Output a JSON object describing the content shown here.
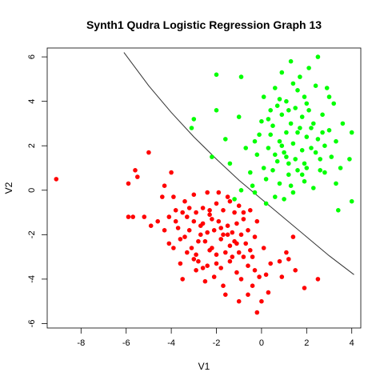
{
  "chart_data": {
    "type": "scatter",
    "title": "Synth1 Qudra Logistic Regression Graph 13",
    "xlabel": "V1",
    "ylabel": "V2",
    "xlim": [
      -9.5,
      4.4
    ],
    "ylim": [
      -6.2,
      6.4
    ],
    "x_ticks": [
      -8,
      -6,
      -4,
      -2,
      0,
      2,
      4
    ],
    "y_ticks": [
      -6,
      -4,
      -2,
      0,
      2,
      4,
      6
    ],
    "grid": false,
    "legend": "none",
    "colors": {
      "class_red": "#ff0000",
      "class_green": "#00ff00",
      "boundary": "#333333"
    },
    "series": [
      {
        "color": "#ff0000",
        "points": [
          [
            -9.1,
            0.5
          ],
          [
            -5.9,
            0.3
          ],
          [
            -5.6,
            0.9
          ],
          [
            -5.5,
            0.6
          ],
          [
            -5.2,
            -1.2
          ],
          [
            -5.0,
            1.7
          ],
          [
            -4.9,
            -1.6
          ],
          [
            -5.9,
            -1.2
          ],
          [
            -5.7,
            -1.2
          ],
          [
            -4.4,
            -0.3
          ],
          [
            -4.3,
            0.2
          ],
          [
            -4.1,
            -2.4
          ],
          [
            -4.0,
            0.8
          ],
          [
            -3.9,
            -0.3
          ],
          [
            -3.8,
            -1.4
          ],
          [
            -3.8,
            -0.9
          ],
          [
            -3.7,
            -1.7
          ],
          [
            -3.6,
            -2.2
          ],
          [
            -3.5,
            -1.0
          ],
          [
            -3.4,
            -0.5
          ],
          [
            -3.3,
            -1.2
          ],
          [
            -3.2,
            -1.8
          ],
          [
            -3.1,
            -2.6
          ],
          [
            -3.0,
            -0.2
          ],
          [
            -3.0,
            -1.4
          ],
          [
            -2.9,
            -2.9
          ],
          [
            -2.8,
            -3.2
          ],
          [
            -2.7,
            -2.0
          ],
          [
            -2.6,
            -0.8
          ],
          [
            -2.6,
            -1.5
          ],
          [
            -2.5,
            -2.3
          ],
          [
            -2.4,
            -3.4
          ],
          [
            -2.4,
            -0.1
          ],
          [
            -2.3,
            -1.1
          ],
          [
            -2.2,
            -2.6
          ],
          [
            -2.1,
            -3.9
          ],
          [
            -2.1,
            -1.8
          ],
          [
            -2.0,
            -0.6
          ],
          [
            -2.0,
            -2.9
          ],
          [
            -1.9,
            -1.4
          ],
          [
            -1.8,
            -2.2
          ],
          [
            -1.8,
            -3.5
          ],
          [
            -1.7,
            -0.9
          ],
          [
            -1.7,
            -2.0
          ],
          [
            -1.6,
            -2.8
          ],
          [
            -1.5,
            -1.6
          ],
          [
            -1.5,
            -0.3
          ],
          [
            -1.4,
            -2.5
          ],
          [
            -1.4,
            -3.2
          ],
          [
            -1.3,
            -1.9
          ],
          [
            -1.2,
            -1.0
          ],
          [
            -1.2,
            -2.3
          ],
          [
            -1.1,
            -3.7
          ],
          [
            -1.1,
            -1.5
          ],
          [
            -1.0,
            -2.8
          ],
          [
            -1.0,
            -0.7
          ],
          [
            -0.9,
            -2.0
          ],
          [
            -0.9,
            -4.0
          ],
          [
            -0.8,
            -1.3
          ],
          [
            -0.8,
            -3.0
          ],
          [
            -0.7,
            -2.4
          ],
          [
            -0.6,
            -1.8
          ],
          [
            -0.6,
            -3.4
          ],
          [
            -0.5,
            -0.9
          ],
          [
            -0.5,
            -2.7
          ],
          [
            -0.4,
            -4.3
          ],
          [
            -0.3,
            -2.1
          ],
          [
            -0.3,
            -3.6
          ],
          [
            -0.2,
            -1.4
          ],
          [
            -0.2,
            -5.5
          ],
          [
            -0.1,
            -3.9
          ],
          [
            0.1,
            -2.6
          ],
          [
            0.2,
            -3.8
          ],
          [
            0.8,
            -3.2
          ],
          [
            0.9,
            -3.9
          ],
          [
            1.1,
            -2.8
          ],
          [
            1.2,
            -3.1
          ],
          [
            1.4,
            -2.1
          ],
          [
            1.5,
            -3.6
          ],
          [
            1.9,
            -4.4
          ],
          [
            2.5,
            -4.0
          ],
          [
            -1.0,
            -5.0
          ],
          [
            0.3,
            -4.6
          ],
          [
            -3.5,
            -4.0
          ],
          [
            -2.9,
            -3.6
          ],
          [
            -2.5,
            -4.1
          ],
          [
            -1.6,
            -4.7
          ],
          [
            -0.6,
            -4.7
          ],
          [
            0.0,
            -5.0
          ],
          [
            -4.3,
            -1.8
          ],
          [
            -4.6,
            -1.4
          ],
          [
            -3.9,
            -2.6
          ],
          [
            -2.8,
            -2.3
          ],
          [
            -2.3,
            -0.9
          ],
          [
            -1.9,
            -0.1
          ],
          [
            -1.3,
            -3.0
          ],
          [
            -2.6,
            -3.5
          ],
          [
            -3.3,
            -2.8
          ],
          [
            -2.2,
            -1.3
          ],
          [
            -1.7,
            -4.3
          ],
          [
            -3.0,
            -3.1
          ],
          [
            -2.9,
            -1.0
          ],
          [
            -3.6,
            -3.3
          ],
          [
            -4.1,
            -1.2
          ],
          [
            -0.8,
            -1.0
          ],
          [
            -1.4,
            -0.5
          ],
          [
            -2.7,
            -1.6
          ],
          [
            -3.2,
            -0.8
          ],
          [
            -1.1,
            -2.4
          ],
          [
            -1.8,
            -1.7
          ],
          [
            -2.3,
            -2.7
          ],
          [
            -0.4,
            -3.0
          ],
          [
            0.4,
            -3.3
          ],
          [
            -2.0,
            -3.3
          ],
          [
            -3.4,
            -2.1
          ],
          [
            -1.5,
            -2.0
          ],
          [
            -2.4,
            -1.9
          ]
        ]
      },
      {
        "color": "#00ff00",
        "points": [
          [
            -3.1,
            2.8
          ],
          [
            -3.0,
            3.2
          ],
          [
            -2.2,
            1.5
          ],
          [
            -2.0,
            5.2
          ],
          [
            -1.2,
            -0.4
          ],
          [
            -0.9,
            0.0
          ],
          [
            -0.9,
            5.1
          ],
          [
            -0.5,
            0.8
          ],
          [
            -0.4,
            0.2
          ],
          [
            -0.3,
            -0.1
          ],
          [
            -0.2,
            1.6
          ],
          [
            -0.1,
            2.5
          ],
          [
            0.0,
            3.1
          ],
          [
            0.1,
            4.2
          ],
          [
            0.2,
            0.5
          ],
          [
            0.2,
            -0.6
          ],
          [
            0.3,
            1.9
          ],
          [
            0.4,
            3.6
          ],
          [
            0.5,
            0.9
          ],
          [
            0.5,
            2.9
          ],
          [
            0.6,
            4.6
          ],
          [
            0.6,
            -0.3
          ],
          [
            0.7,
            1.3
          ],
          [
            0.7,
            3.8
          ],
          [
            0.8,
            2.2
          ],
          [
            0.8,
            0.3
          ],
          [
            0.9,
            3.4
          ],
          [
            0.9,
            5.3
          ],
          [
            1.0,
            1.7
          ],
          [
            1.0,
            -0.4
          ],
          [
            1.1,
            2.6
          ],
          [
            1.1,
            4.0
          ],
          [
            1.2,
            0.7
          ],
          [
            1.2,
            1.2
          ],
          [
            1.3,
            3.0
          ],
          [
            1.3,
            5.8
          ],
          [
            1.4,
            2.1
          ],
          [
            1.4,
            -0.1
          ],
          [
            1.5,
            3.7
          ],
          [
            1.5,
            1.4
          ],
          [
            1.6,
            4.5
          ],
          [
            1.6,
            0.9
          ],
          [
            1.7,
            2.8
          ],
          [
            1.7,
            5.1
          ],
          [
            1.8,
            1.8
          ],
          [
            1.8,
            3.3
          ],
          [
            1.9,
            0.4
          ],
          [
            1.9,
            4.2
          ],
          [
            2.0,
            2.4
          ],
          [
            2.0,
            1.0
          ],
          [
            2.1,
            3.6
          ],
          [
            2.1,
            5.5
          ],
          [
            2.2,
            1.9
          ],
          [
            2.3,
            3.0
          ],
          [
            2.3,
            0.1
          ],
          [
            2.4,
            4.7
          ],
          [
            2.5,
            2.3
          ],
          [
            2.5,
            6.0
          ],
          [
            2.6,
            1.4
          ],
          [
            2.7,
            3.4
          ],
          [
            2.8,
            0.8
          ],
          [
            2.9,
            4.6
          ],
          [
            3.0,
            2.7
          ],
          [
            3.1,
            1.5
          ],
          [
            3.2,
            3.9
          ],
          [
            3.3,
            0.3
          ],
          [
            3.4,
            -0.9
          ],
          [
            3.6,
            3.0
          ],
          [
            3.9,
            1.4
          ],
          [
            4.0,
            -0.5
          ],
          [
            4.0,
            2.6
          ],
          [
            -2.0,
            3.6
          ],
          [
            -1.6,
            2.3
          ],
          [
            -1.4,
            1.2
          ],
          [
            -1.0,
            3.3
          ],
          [
            -0.7,
            1.9
          ],
          [
            0.1,
            1.0
          ],
          [
            0.4,
            2.5
          ],
          [
            0.8,
            4.1
          ],
          [
            1.1,
            1.5
          ],
          [
            1.3,
            0.2
          ],
          [
            1.6,
            2.6
          ],
          [
            1.9,
            1.2
          ],
          [
            2.2,
            2.8
          ],
          [
            2.6,
            0.9
          ],
          [
            2.8,
            2.0
          ],
          [
            3.0,
            4.2
          ],
          [
            3.3,
            2.2
          ],
          [
            3.5,
            1.0
          ],
          [
            0.3,
            3.2
          ],
          [
            0.9,
            2.0
          ],
          [
            1.4,
            4.8
          ],
          [
            2.0,
            3.9
          ],
          [
            2.4,
            1.7
          ],
          [
            -0.3,
            2.2
          ],
          [
            0.6,
            1.6
          ],
          [
            1.2,
            3.6
          ],
          [
            1.8,
            0.7
          ],
          [
            2.7,
            2.6
          ]
        ]
      }
    ],
    "decision_boundary": {
      "x": [
        -6.1,
        -5,
        -4,
        -3,
        -2,
        -1,
        0,
        1,
        2,
        3,
        4.1
      ],
      "y": [
        6.2,
        4.7,
        3.5,
        2.4,
        1.4,
        0.45,
        -0.4,
        -1.25,
        -2.1,
        -2.95,
        -3.8
      ]
    }
  }
}
